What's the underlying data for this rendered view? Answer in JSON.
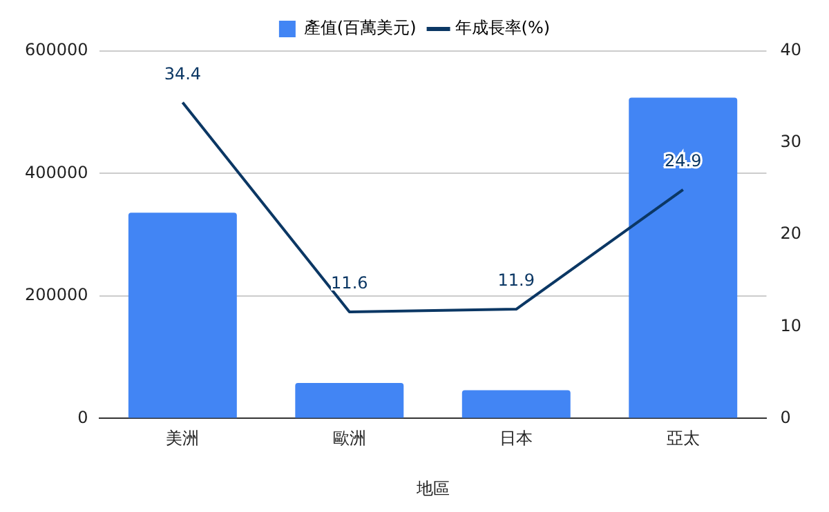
{
  "chart_data": {
    "type": "bar",
    "xlabel": "地區",
    "categories": [
      "美洲",
      "歐洲",
      "日本",
      "亞太"
    ],
    "series": [
      {
        "name": "產值(百萬美元)",
        "color": "#4285f4",
        "values": [
          336000,
          58000,
          46000,
          524000
        ]
      },
      {
        "name": "年成長率(%)",
        "type": "line",
        "axis": "y2",
        "color": "#0b3764",
        "values": [
          34.4,
          11.6,
          11.9,
          24.9
        ],
        "value_labels": [
          "34.4",
          "11.6",
          "11.9",
          "24.9"
        ]
      }
    ],
    "ylim": [
      0,
      600000
    ],
    "yticks": [
      0,
      200000,
      400000,
      600000
    ],
    "y2lim": [
      0,
      40
    ],
    "y2ticks": [
      0,
      10,
      20,
      30,
      40
    ],
    "grid": "y",
    "legend": "top",
    "marker": "none"
  }
}
